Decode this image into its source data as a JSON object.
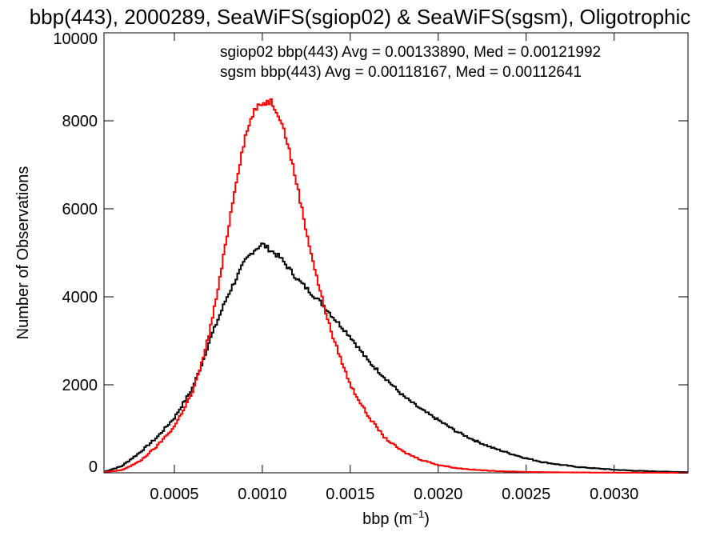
{
  "chart_data": {
    "type": "line",
    "title": "bbp(443), 2000289, SeaWiFS(sgiop02) & SeaWiFS(sgsm), Oligotrophic",
    "xlabel": "bbp (m",
    "xlabel_sup": "−1",
    "xlabel_close": ")",
    "ylabel": "Number of Observations",
    "xlim": [
      0.0001,
      0.00342
    ],
    "ylim": [
      0,
      10000
    ],
    "xticks": [
      {
        "v": 0.0005,
        "label": "0.0005"
      },
      {
        "v": 0.001,
        "label": "0.0010"
      },
      {
        "v": 0.0015,
        "label": "0.0015"
      },
      {
        "v": 0.002,
        "label": "0.0020"
      },
      {
        "v": 0.0025,
        "label": "0.0025"
      },
      {
        "v": 0.003,
        "label": "0.0030"
      }
    ],
    "yticks": [
      {
        "v": 0,
        "label": "0"
      },
      {
        "v": 2000,
        "label": "2000"
      },
      {
        "v": 4000,
        "label": "4000"
      },
      {
        "v": 6000,
        "label": "6000"
      },
      {
        "v": 8000,
        "label": "8000"
      },
      {
        "v": 10000,
        "label": "10000"
      }
    ],
    "annotations": [
      {
        "text": "sgiop02 bbp(443) Avg = 0.00133890, Med = 0.00121992",
        "color": "#000000"
      },
      {
        "text": "sgsm bbp(443) Avg = 0.00118167, Med = 0.00112641",
        "color": "#ff0000"
      }
    ],
    "grid": false,
    "series": [
      {
        "color": "#000000",
        "style": "step",
        "x": [
          0.0001,
          0.0002,
          0.0003,
          0.0004,
          0.0005,
          0.0006,
          0.00065,
          0.0007,
          0.00075,
          0.0008,
          0.00085,
          0.0009,
          0.00095,
          0.001,
          0.00105,
          0.0011,
          0.00115,
          0.0012,
          0.00125,
          0.0013,
          0.00135,
          0.0014,
          0.0015,
          0.0016,
          0.0017,
          0.0018,
          0.0019,
          0.002,
          0.0021,
          0.0022,
          0.0023,
          0.0024,
          0.0025,
          0.0026,
          0.0027,
          0.0028,
          0.0029,
          0.003,
          0.0031,
          0.0032,
          0.0033,
          0.00342
        ],
        "y": [
          20,
          150,
          450,
          800,
          1250,
          1900,
          2400,
          3000,
          3500,
          4000,
          4400,
          4800,
          5050,
          5200,
          5050,
          4900,
          4650,
          4400,
          4200,
          4000,
          3800,
          3550,
          3100,
          2550,
          2150,
          1750,
          1450,
          1200,
          950,
          750,
          580,
          450,
          330,
          240,
          180,
          130,
          100,
          70,
          50,
          35,
          25,
          15
        ]
      },
      {
        "color": "#ff0000",
        "style": "step",
        "x": [
          0.0001,
          0.0002,
          0.0003,
          0.0004,
          0.0005,
          0.0006,
          0.00065,
          0.0007,
          0.00075,
          0.0008,
          0.00085,
          0.0009,
          0.00095,
          0.001,
          0.00105,
          0.0011,
          0.00115,
          0.0012,
          0.00125,
          0.0013,
          0.00135,
          0.0014,
          0.0015,
          0.0016,
          0.0017,
          0.0018,
          0.0019,
          0.002,
          0.0021,
          0.0022,
          0.0023,
          0.0024,
          0.0025,
          0.0026,
          0.0027,
          0.0028,
          0.0029,
          0.003,
          0.0031,
          0.0032,
          0.0033,
          0.00342
        ],
        "y": [
          10,
          60,
          250,
          600,
          1050,
          1800,
          2400,
          3200,
          4200,
          5400,
          6600,
          7600,
          8200,
          8400,
          8450,
          8100,
          7400,
          6500,
          5500,
          4600,
          3800,
          3100,
          2000,
          1300,
          780,
          480,
          300,
          180,
          110,
          70,
          45,
          30,
          20,
          15,
          10,
          8,
          5,
          4,
          3,
          2,
          2,
          1
        ]
      }
    ]
  }
}
